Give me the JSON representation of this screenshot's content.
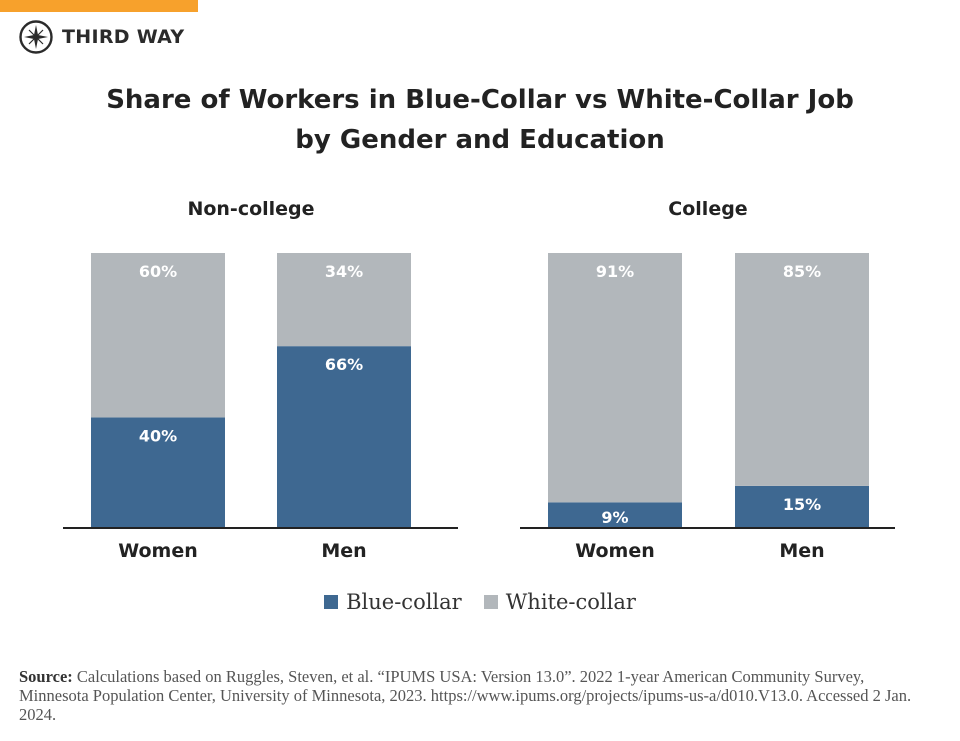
{
  "brand": {
    "name": "THIRD WAY",
    "accent": "#f7a12c"
  },
  "chart_data": [
    {
      "type": "bar",
      "stacked": true,
      "title": "Non-college",
      "categories": [
        "Women",
        "Men"
      ],
      "series": [
        {
          "name": "Blue-collar",
          "values": [
            40,
            66
          ],
          "labels": [
            "40%",
            "66%"
          ],
          "color": "#3e6891"
        },
        {
          "name": "White-collar",
          "values": [
            60,
            34
          ],
          "labels": [
            "60%",
            "34%"
          ],
          "color": "#b2b7bb"
        }
      ],
      "ylim": [
        0,
        100
      ],
      "grid": false
    },
    {
      "type": "bar",
      "stacked": true,
      "title": "College",
      "categories": [
        "Women",
        "Men"
      ],
      "series": [
        {
          "name": "Blue-collar",
          "values": [
            9,
            15
          ],
          "labels": [
            "9%",
            "15%"
          ],
          "color": "#3e6891"
        },
        {
          "name": "White-collar",
          "values": [
            91,
            85
          ],
          "labels": [
            "91%",
            "85%"
          ],
          "color": "#b2b7bb"
        }
      ],
      "ylim": [
        0,
        100
      ],
      "grid": false
    }
  ],
  "title_lines": [
    "Share of Workers in Blue-Collar vs White-Collar Job",
    "by Gender and Education"
  ],
  "legend": {
    "position": "bottom",
    "items": [
      {
        "label": "Blue-collar",
        "color": "#3e6891"
      },
      {
        "label": "White-collar",
        "color": "#b2b7bb"
      }
    ]
  },
  "source": {
    "label": "Source:",
    "text": "Calculations based on Ruggles, Steven, et al. “IPUMS USA: Version 13.0”. 2022 1-year American Community Survey, Minnesota Population Center, University of Minnesota, 2023. https://www.ipums.org/projects/ipums-us-a/d010.V13.0. Accessed 2 Jan. 2024."
  }
}
